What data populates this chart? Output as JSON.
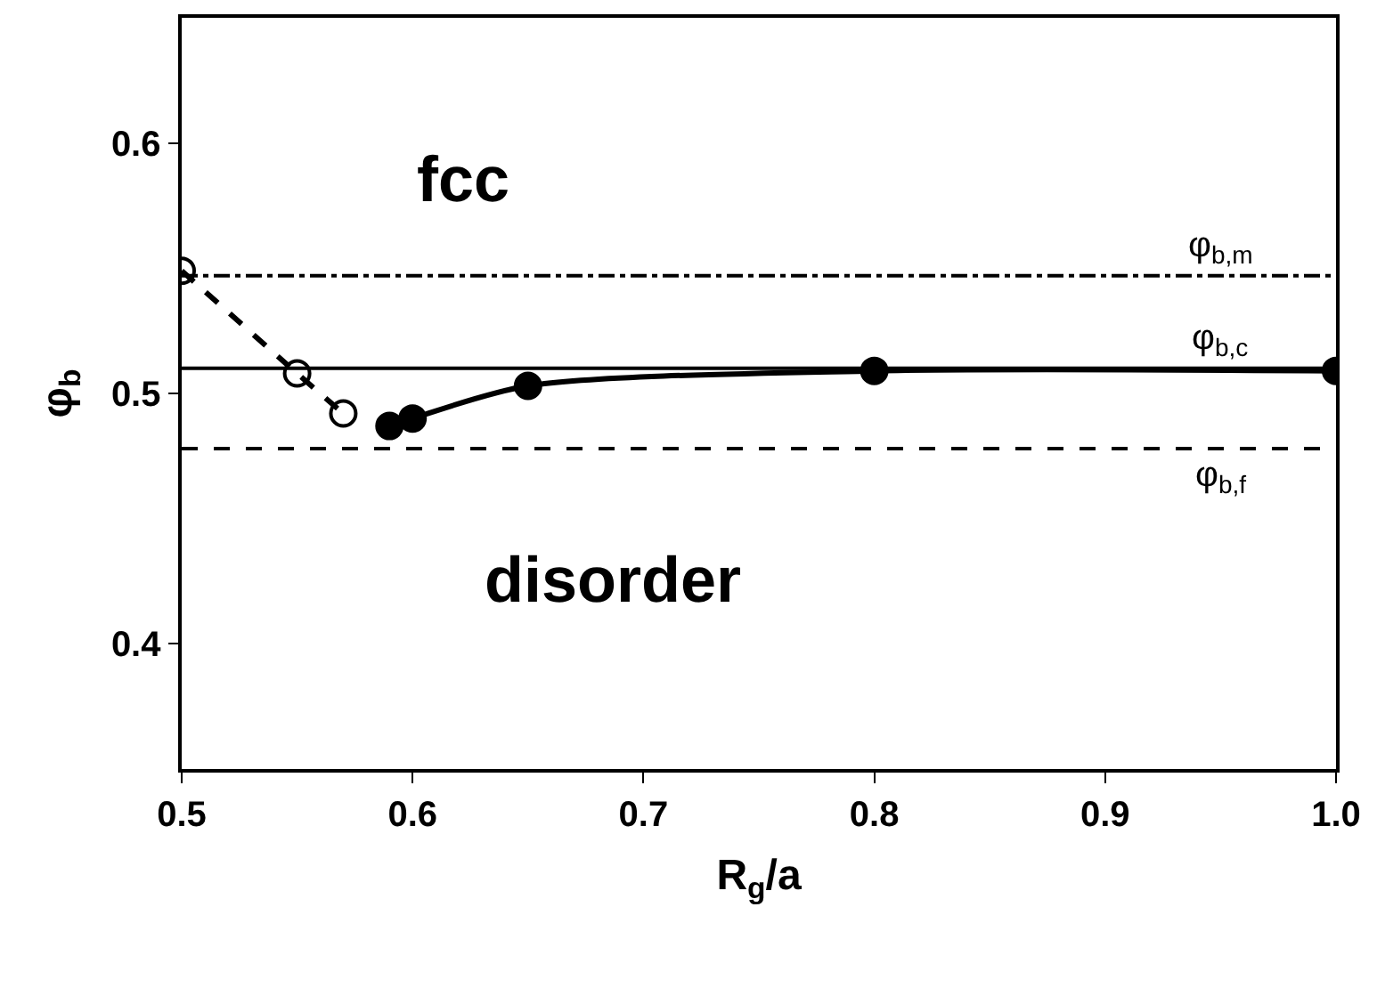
{
  "chart_data": {
    "type": "line",
    "xlabel": "R$_{g}$/a",
    "ylabel": "φ$_{b}$",
    "xlim": [
      0.5,
      1.0
    ],
    "ylim": [
      0.35,
      0.65
    ],
    "xticks": [
      0.5,
      0.6,
      0.7,
      0.8,
      0.9,
      {
        "value": 1.0,
        "label": "1.0"
      }
    ],
    "yticks": [
      0.4,
      0.5,
      0.6
    ],
    "series": [
      {
        "color": "#000000",
        "x": [
          0.5,
          0.55,
          0.57
        ],
        "values": [
          0.549,
          0.508,
          0.492
        ],
        "marker": "circle-open",
        "line_style": "dashed"
      },
      {
        "color": "#000000",
        "x": [
          0.59,
          0.6,
          0.65,
          0.8,
          1.0
        ],
        "values": [
          0.487,
          0.49,
          0.503,
          0.509,
          0.509
        ],
        "marker": "circle",
        "line_style": "solid"
      }
    ],
    "ref_lines": [
      {
        "axis": "y",
        "value": 0.547,
        "label": "φ$_{b,m}$",
        "line_style": "dashdot",
        "color": "#000000"
      },
      {
        "axis": "y",
        "value": 0.51,
        "label": "φ$_{b,c}$",
        "line_style": "solid",
        "color": "#000000"
      },
      {
        "axis": "y",
        "value": 0.478,
        "label": "φ$_{b,f}$",
        "line_style": "dashed",
        "color": "#000000"
      }
    ],
    "annotations": [
      "fcc",
      "disorder"
    ]
  }
}
